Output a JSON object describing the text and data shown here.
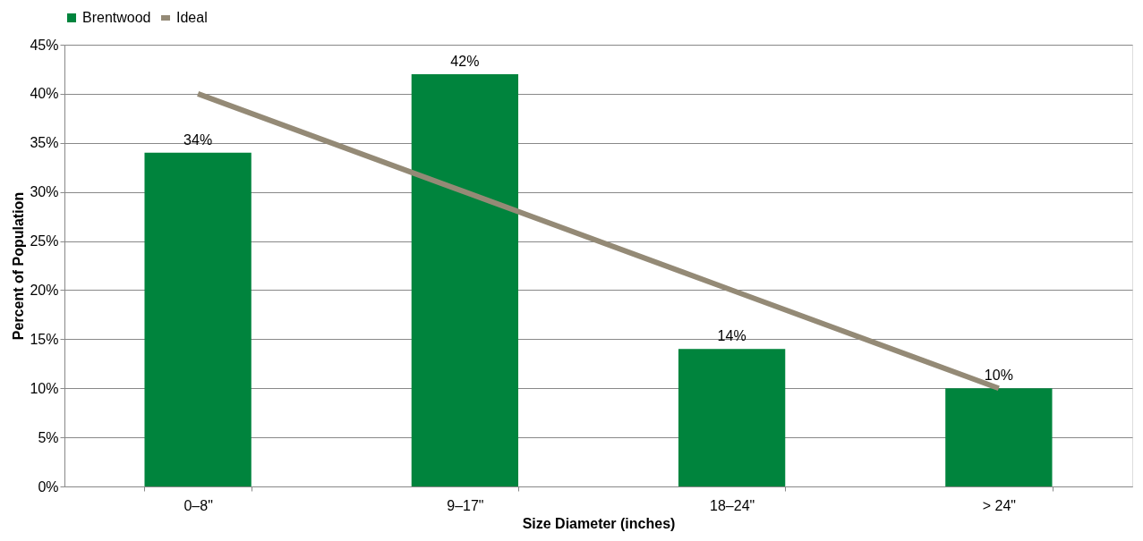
{
  "chart_data": {
    "type": "bar",
    "xlabel": "Size Diameter (inches)",
    "ylabel": "Percent of Population",
    "categories": [
      "0–8\"",
      "9–17\"",
      "18–24\"",
      "> 24\""
    ],
    "series": [
      {
        "name": "Brentwood",
        "color": "#00843d",
        "values": [
          34,
          42,
          14,
          10
        ],
        "value_labels": [
          "34%",
          "42%",
          "14%",
          "10%"
        ]
      },
      {
        "name": "Ideal",
        "type": "line",
        "color": "#948a76",
        "values": [
          40,
          30,
          20,
          10
        ]
      }
    ],
    "ylim": [
      0,
      45
    ],
    "yticks": [
      {
        "value": 0,
        "label": "0%"
      },
      {
        "value": 5,
        "label": "5%"
      },
      {
        "value": 10,
        "label": "10%"
      },
      {
        "value": 15,
        "label": "15%"
      },
      {
        "value": 20,
        "label": "20%"
      },
      {
        "value": 25,
        "label": "25%"
      },
      {
        "value": 30,
        "label": "30%"
      },
      {
        "value": 35,
        "label": "35%"
      },
      {
        "value": 40,
        "label": "40%"
      },
      {
        "value": 45,
        "label": "45%"
      }
    ],
    "grid": "y",
    "legend": "top",
    "marker": "none",
    "line_style": "solid"
  }
}
